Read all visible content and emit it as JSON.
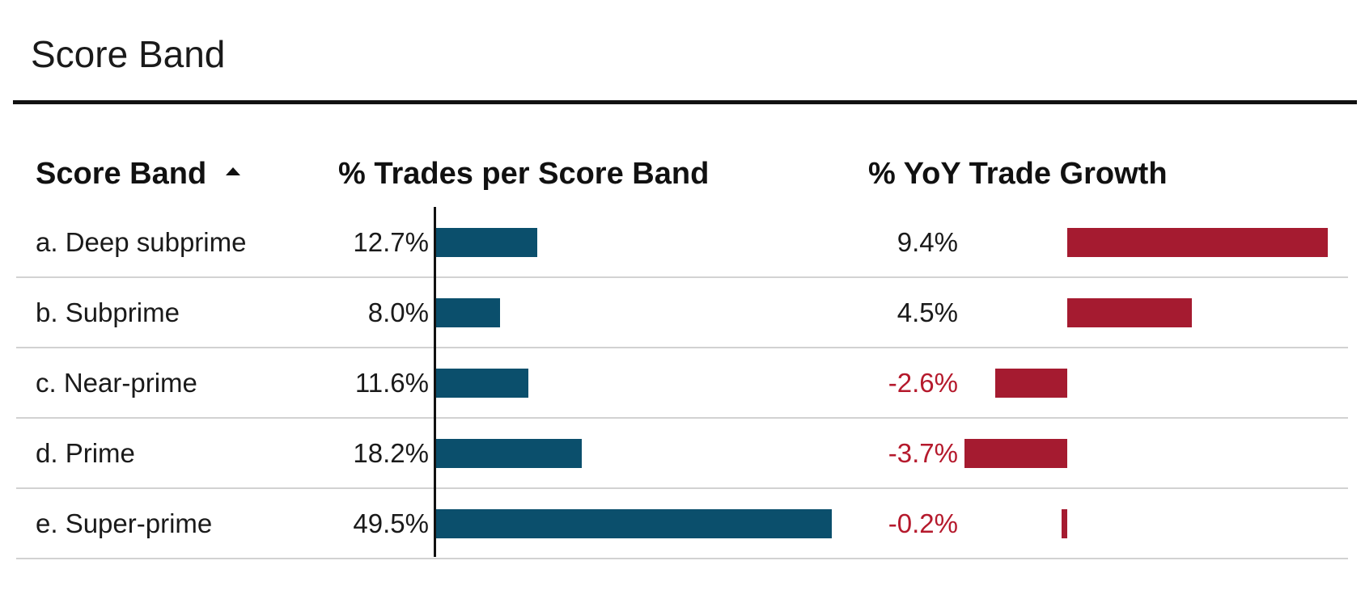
{
  "title": "Score Band",
  "colors": {
    "share_bar": "#0b4f6c",
    "growth_bar": "#a51b30",
    "negative_text": "#b5192c",
    "positive_text": "#1a1a1a"
  },
  "icons": {
    "sort": "sort-ascending-icon"
  },
  "chart_data": {
    "type": "table",
    "columns": [
      "Score Band",
      "% Trades per Score Band",
      "% YoY Trade Growth"
    ],
    "sort": {
      "column": "Score Band",
      "direction": "ascending"
    },
    "rows": [
      {
        "band": "a. Deep subprime",
        "share": 12.7,
        "share_label": "12.7%",
        "growth": 9.4,
        "growth_label": "9.4%"
      },
      {
        "band": "b. Subprime",
        "share": 8.0,
        "share_label": "8.0%",
        "growth": 4.5,
        "growth_label": "4.5%"
      },
      {
        "band": "c. Near-prime",
        "share": 11.6,
        "share_label": "11.6%",
        "growth": -2.6,
        "growth_label": "-2.6%"
      },
      {
        "band": "d. Prime",
        "share": 18.2,
        "share_label": "18.2%",
        "growth": -3.7,
        "growth_label": "-3.7%"
      },
      {
        "band": "e. Super-prime",
        "share": 49.5,
        "share_label": "49.5%",
        "growth": -0.2,
        "growth_label": "-0.2%"
      }
    ]
  }
}
